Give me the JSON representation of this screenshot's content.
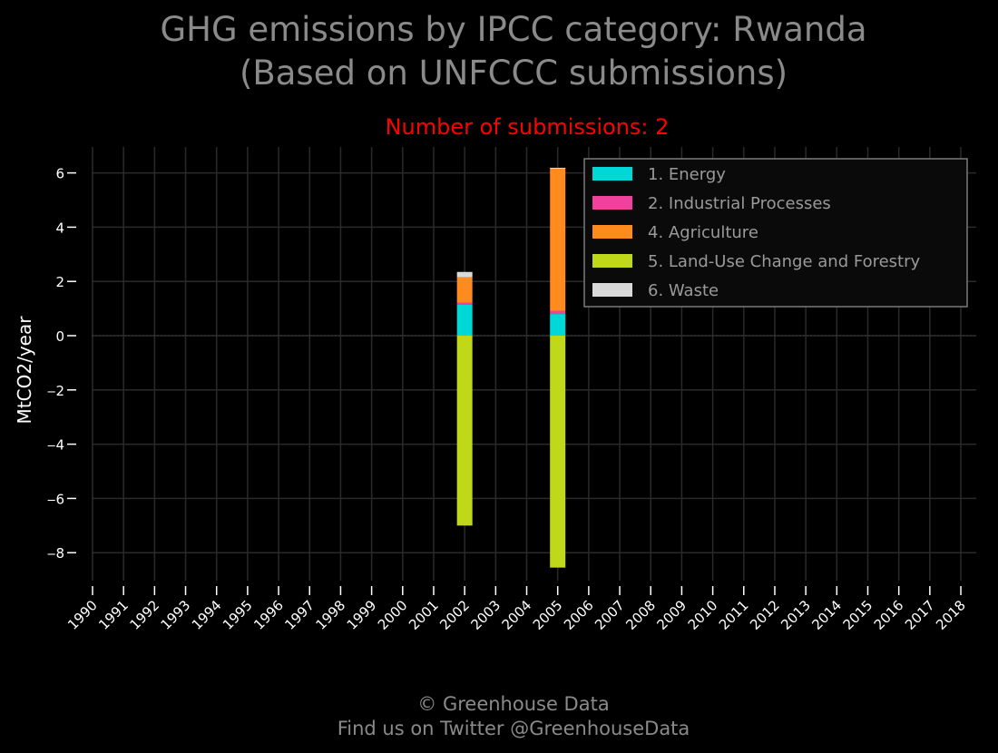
{
  "chart_data": {
    "type": "bar",
    "stacked": true,
    "title_line1": "GHG emissions by IPCC category: Rwanda",
    "title_line2": "(Based on UNFCCC submissions)",
    "subtitle": "Number of submissions: 2",
    "ylabel": "MtCO2/year",
    "xlabel": "",
    "ylim": [
      -9.3,
      7.0
    ],
    "yticks": [
      {
        "value": 6,
        "label": "6"
      },
      {
        "value": 4,
        "label": "4"
      },
      {
        "value": 2,
        "label": "2"
      },
      {
        "value": 0,
        "label": "0"
      },
      {
        "value": -2,
        "label": "‒2"
      },
      {
        "value": -4,
        "label": "‒4"
      },
      {
        "value": -6,
        "label": "‒6"
      },
      {
        "value": -8,
        "label": "‒8"
      }
    ],
    "categories": [
      "1990",
      "1991",
      "1992",
      "1993",
      "1994",
      "1995",
      "1996",
      "1997",
      "1998",
      "1999",
      "2000",
      "2001",
      "2002",
      "2003",
      "2004",
      "2005",
      "2006",
      "2007",
      "2008",
      "2009",
      "2010",
      "2011",
      "2012",
      "2013",
      "2014",
      "2015",
      "2016",
      "2017",
      "2018"
    ],
    "grid": true,
    "legend_position": "top-right",
    "series": [
      {
        "name": "1. Energy",
        "color": "#00d7d7",
        "values": {
          "2002": 1.15,
          "2005": 0.8
        }
      },
      {
        "name": "2. Industrial Processes",
        "color": "#f0429c",
        "values": {
          "2002": 0.07,
          "2005": 0.12
        }
      },
      {
        "name": "4. Agriculture",
        "color": "#ff8a1e",
        "values": {
          "2002": 0.93,
          "2005": 5.25
        }
      },
      {
        "name": "5. Land-Use Change and Forestry",
        "color": "#c0d81a",
        "values": {
          "2002": -7.0,
          "2005": -8.55
        }
      },
      {
        "name": "6. Waste",
        "color": "#d9d9d9",
        "values": {
          "2002": 0.2,
          "2005": 0.02
        }
      }
    ]
  },
  "footer": {
    "line1": "© Greenhouse Data",
    "line2": "Find us on Twitter @GreenhouseData"
  }
}
